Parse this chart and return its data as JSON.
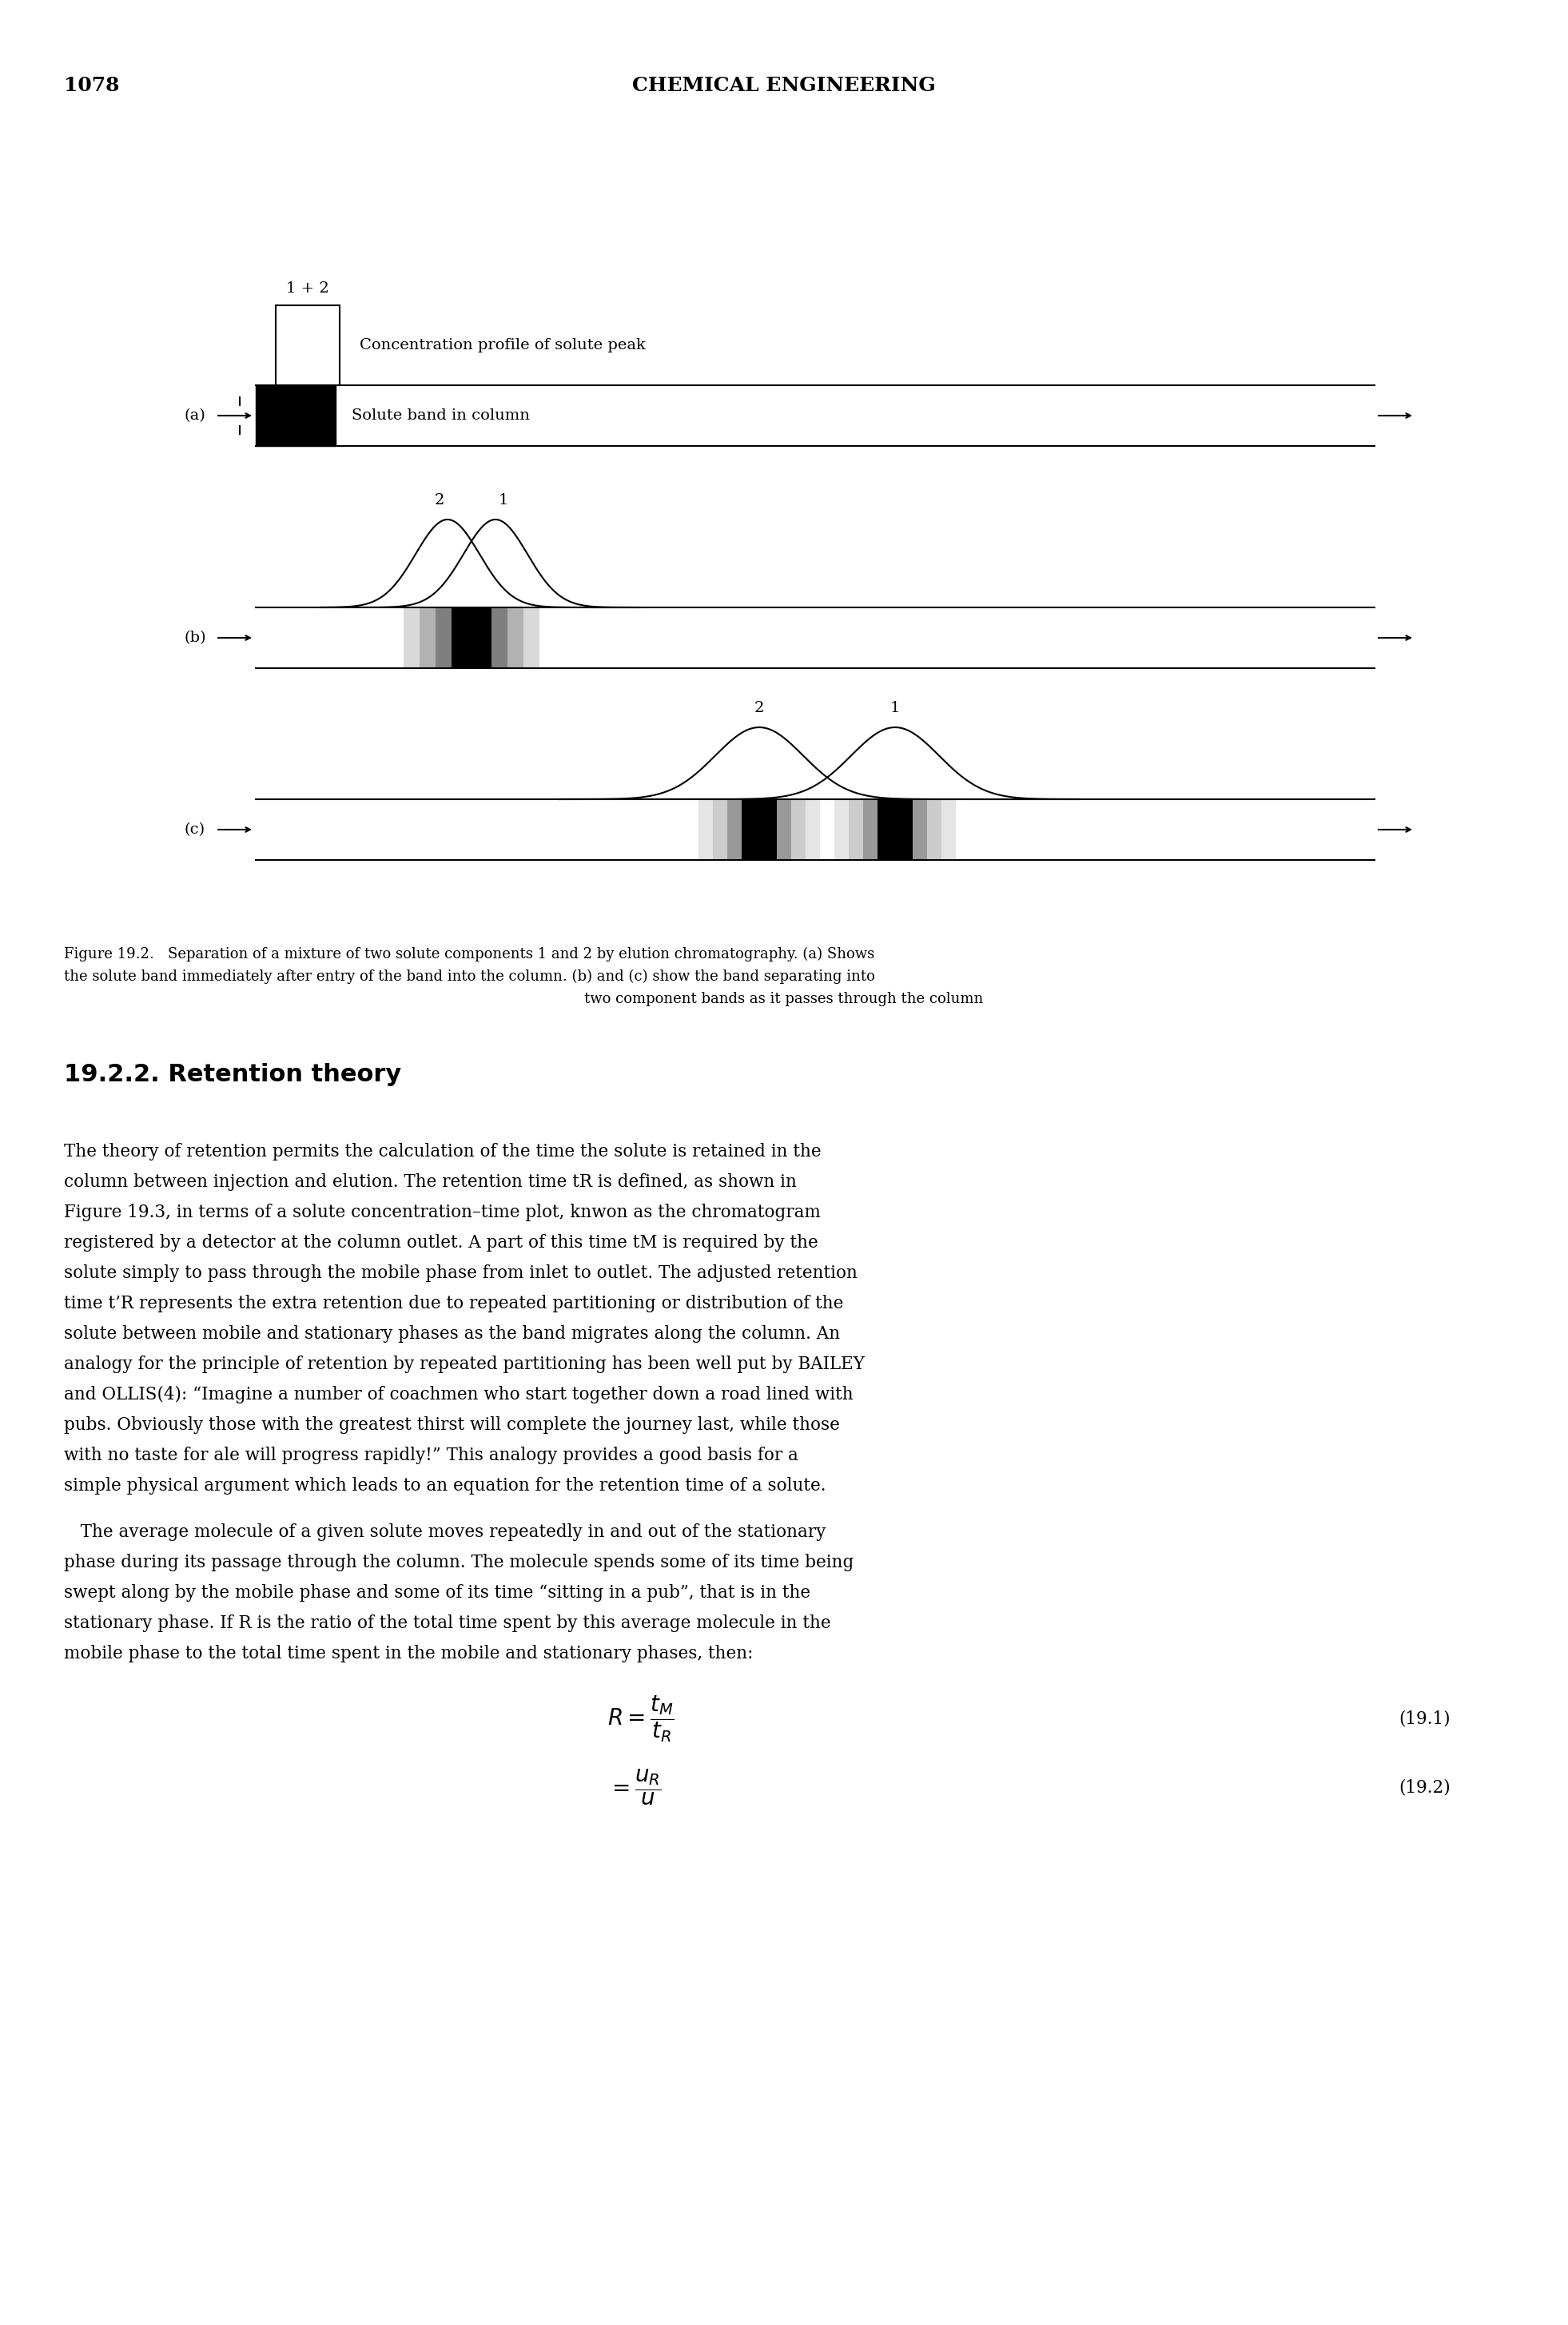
{
  "page_number": "1078",
  "header": "CHEMICAL ENGINEERING",
  "figure_caption_line1": "Figure 19.2.   Separation of a mixture of two solute components 1 and 2 by elution chromatography. (a) Shows",
  "figure_caption_line2": "the solute band immediately after entry of the band into the column. (b) and (c) show the band separating into",
  "figure_caption_line3": "two component bands as it passes through the column",
  "panel_a_label": "(a)",
  "panel_b_label": "(b)",
  "panel_c_label": "(c)",
  "conc_profile_label": "Concentration profile of solute peak",
  "solute_band_label": "Solute band in column",
  "peak_label_12": "1 + 2",
  "peak_label_2": "2",
  "peak_label_1_b": "1",
  "peak_label_2_c": "2",
  "peak_label_1_c": "1",
  "section_header": "19.2.2. Retention theory",
  "body_text": "The theory of retention permits the calculation of the time the solute is retained in the\ncolumn between injection and elution. The retention time tR is defined, as shown in\nFigure 19.3, in terms of a solute concentration–time plot, knwon as the chromatogram\nregistered by a detector at the column outlet. A part of this time tM is required by the\nsolute simply to pass through the mobile phase from inlet to outlet. The adjusted retention\ntime t’R represents the extra retention due to repeated partitioning or distribution of the\nsolute between mobile and stationary phases as the band migrates along the column. An\nanalogy for the principle of retention by repeated partitioning has been well put by BAILEY\nand OLLIS(4): “Imagine a number of coachmen who start together down a road lined with\npubs. Obviously those with the greatest thirst will complete the journey last, while those\nwith no taste for ale will progress rapidly!” This analogy provides a good basis for a\nsimple physical argument which leads to an equation for the retention time of a solute.",
  "body_text2": "   The average molecule of a given solute moves repeatedly in and out of the stationary\nphase during its passage through the column. The molecule spends some of its time being\nswept along by the mobile phase and some of its time “sitting in a pub”, that is in the\nstationary phase. If R is the ratio of the total time spent by this average molecule in the\nmobile phase to the total time spent in the mobile and stationary phases, then:",
  "eq1_label": "(19.1)",
  "eq2_label": "(19.2)",
  "background_color": "#ffffff",
  "text_color": "#000000"
}
